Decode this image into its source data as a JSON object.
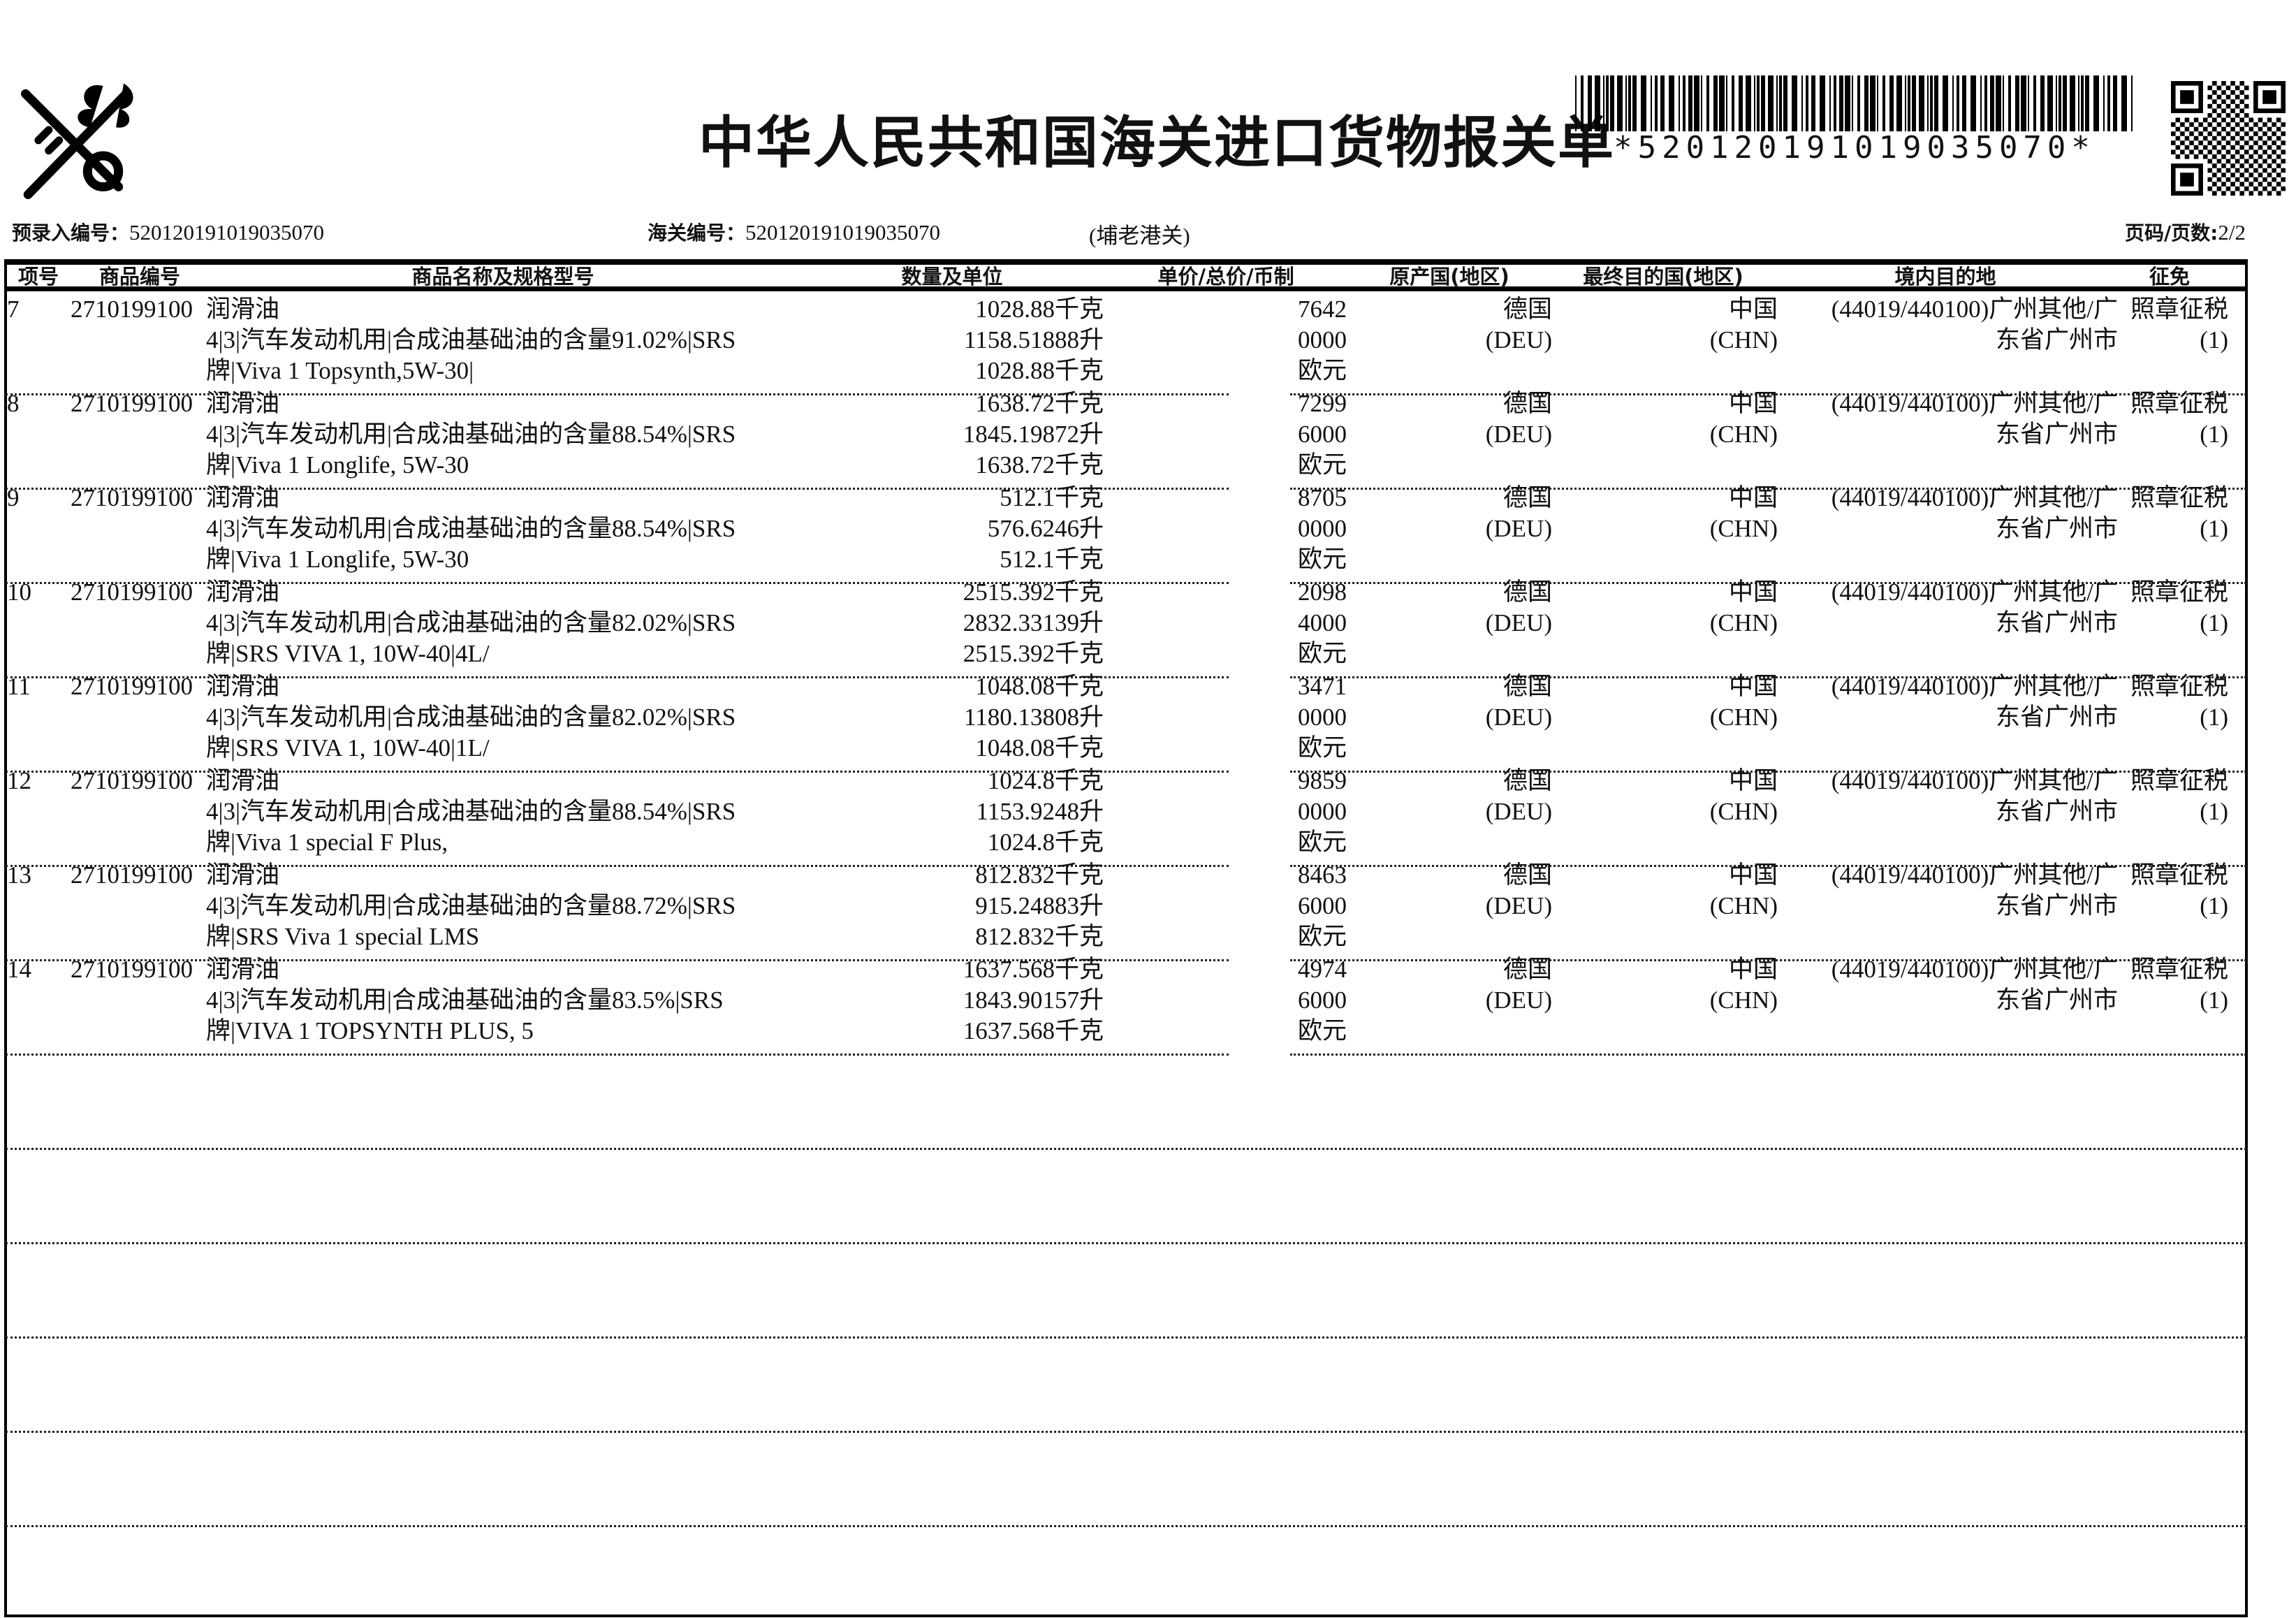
{
  "title": "中华人民共和国海关进口货物报关单",
  "barcode_text": "*520120191019035070*",
  "info": {
    "pre_entry_label": "预录入编号：",
    "pre_entry_no": "520120191019035070",
    "customs_label": "海关编号：",
    "customs_no": "520120191019035070",
    "port": "(埔老港关)",
    "page_label": "页码/页数:",
    "page": "2/2"
  },
  "headers": {
    "item_no": "项号",
    "hs_code": "商品编号",
    "name_spec": "商品名称及规格型号",
    "qty_unit": "数量及单位",
    "price": "单价/总价/币制",
    "origin": "原产国(地区)",
    "final_dest": "最终目的国(地区)",
    "domestic_dest": "境内目的地",
    "levy": "征免"
  },
  "rows": [
    {
      "no": "7",
      "code": "2710199100",
      "name": [
        "润滑油",
        "4|3|汽车发动机用|合成油基础油的含量91.02%|SRS",
        "牌|Viva 1 Topsynth,5W-30|"
      ],
      "qty": [
        "1028.88千克",
        "1158.51888升",
        "1028.88千克"
      ],
      "price": [
        "7642",
        "0000",
        "欧元"
      ],
      "origin": [
        "德国",
        "(DEU)"
      ],
      "dest": [
        "中国",
        "(CHN)"
      ],
      "domestic": [
        "(44019/440100)广州其他/广",
        "东省广州市"
      ],
      "levy": [
        "照章征税",
        "(1)"
      ]
    },
    {
      "no": "8",
      "code": "2710199100",
      "name": [
        "润滑油",
        "4|3|汽车发动机用|合成油基础油的含量88.54%|SRS",
        "牌|Viva 1 Longlife, 5W-30"
      ],
      "qty": [
        "1638.72千克",
        "1845.19872升",
        "1638.72千克"
      ],
      "price": [
        "7299",
        "6000",
        "欧元"
      ],
      "origin": [
        "德国",
        "(DEU)"
      ],
      "dest": [
        "中国",
        "(CHN)"
      ],
      "domestic": [
        "(44019/440100)广州其他/广",
        "东省广州市"
      ],
      "levy": [
        "照章征税",
        "(1)"
      ]
    },
    {
      "no": "9",
      "code": "2710199100",
      "name": [
        "润滑油",
        "4|3|汽车发动机用|合成油基础油的含量88.54%|SRS",
        "牌|Viva 1 Longlife, 5W-30"
      ],
      "qty": [
        "512.1千克",
        "576.6246升",
        "512.1千克"
      ],
      "price": [
        "8705",
        "0000",
        "欧元"
      ],
      "origin": [
        "德国",
        "(DEU)"
      ],
      "dest": [
        "中国",
        "(CHN)"
      ],
      "domestic": [
        "(44019/440100)广州其他/广",
        "东省广州市"
      ],
      "levy": [
        "照章征税",
        "(1)"
      ]
    },
    {
      "no": "10",
      "code": "2710199100",
      "name": [
        "润滑油",
        "4|3|汽车发动机用|合成油基础油的含量82.02%|SRS",
        "牌|SRS VIVA 1, 10W-40|4L/"
      ],
      "qty": [
        "2515.392千克",
        "2832.33139升",
        "2515.392千克"
      ],
      "price": [
        "2098",
        "4000",
        "欧元"
      ],
      "origin": [
        "德国",
        "(DEU)"
      ],
      "dest": [
        "中国",
        "(CHN)"
      ],
      "domestic": [
        "(44019/440100)广州其他/广",
        "东省广州市"
      ],
      "levy": [
        "照章征税",
        "(1)"
      ]
    },
    {
      "no": "11",
      "code": "2710199100",
      "name": [
        "润滑油",
        "4|3|汽车发动机用|合成油基础油的含量82.02%|SRS",
        "牌|SRS VIVA 1, 10W-40|1L/"
      ],
      "qty": [
        "1048.08千克",
        "1180.13808升",
        "1048.08千克"
      ],
      "price": [
        "3471",
        "0000",
        "欧元"
      ],
      "origin": [
        "德国",
        "(DEU)"
      ],
      "dest": [
        "中国",
        "(CHN)"
      ],
      "domestic": [
        "(44019/440100)广州其他/广",
        "东省广州市"
      ],
      "levy": [
        "照章征税",
        "(1)"
      ]
    },
    {
      "no": "12",
      "code": "2710199100",
      "name": [
        "润滑油",
        "4|3|汽车发动机用|合成油基础油的含量88.54%|SRS",
        "牌|Viva 1 special F Plus,"
      ],
      "qty": [
        "1024.8千克",
        "1153.9248升",
        "1024.8千克"
      ],
      "price": [
        "9859",
        "0000",
        "欧元"
      ],
      "origin": [
        "德国",
        "(DEU)"
      ],
      "dest": [
        "中国",
        "(CHN)"
      ],
      "domestic": [
        "(44019/440100)广州其他/广",
        "东省广州市"
      ],
      "levy": [
        "照章征税",
        "(1)"
      ]
    },
    {
      "no": "13",
      "code": "2710199100",
      "name": [
        "润滑油",
        "4|3|汽车发动机用|合成油基础油的含量88.72%|SRS",
        "牌|SRS Viva 1 special LMS"
      ],
      "qty": [
        "812.832千克",
        "915.24883升",
        "812.832千克"
      ],
      "price": [
        "8463",
        "6000",
        "欧元"
      ],
      "origin": [
        "德国",
        "(DEU)"
      ],
      "dest": [
        "中国",
        "(CHN)"
      ],
      "domestic": [
        "(44019/440100)广州其他/广",
        "东省广州市"
      ],
      "levy": [
        "照章征税",
        "(1)"
      ]
    },
    {
      "no": "14",
      "code": "2710199100",
      "name": [
        "润滑油",
        "4|3|汽车发动机用|合成油基础油的含量83.5%|SRS",
        "牌|VIVA 1 TOPSYNTH PLUS, 5"
      ],
      "qty": [
        "1637.568千克",
        "1843.90157升",
        "1637.568千克"
      ],
      "price": [
        "4974",
        "6000",
        "欧元"
      ],
      "origin": [
        "德国",
        "(DEU)"
      ],
      "dest": [
        "中国",
        "(CHN)"
      ],
      "domestic": [
        "(44019/440100)广州其他/广",
        "东省广州市"
      ],
      "levy": [
        "照章征税",
        "(1)"
      ]
    }
  ]
}
